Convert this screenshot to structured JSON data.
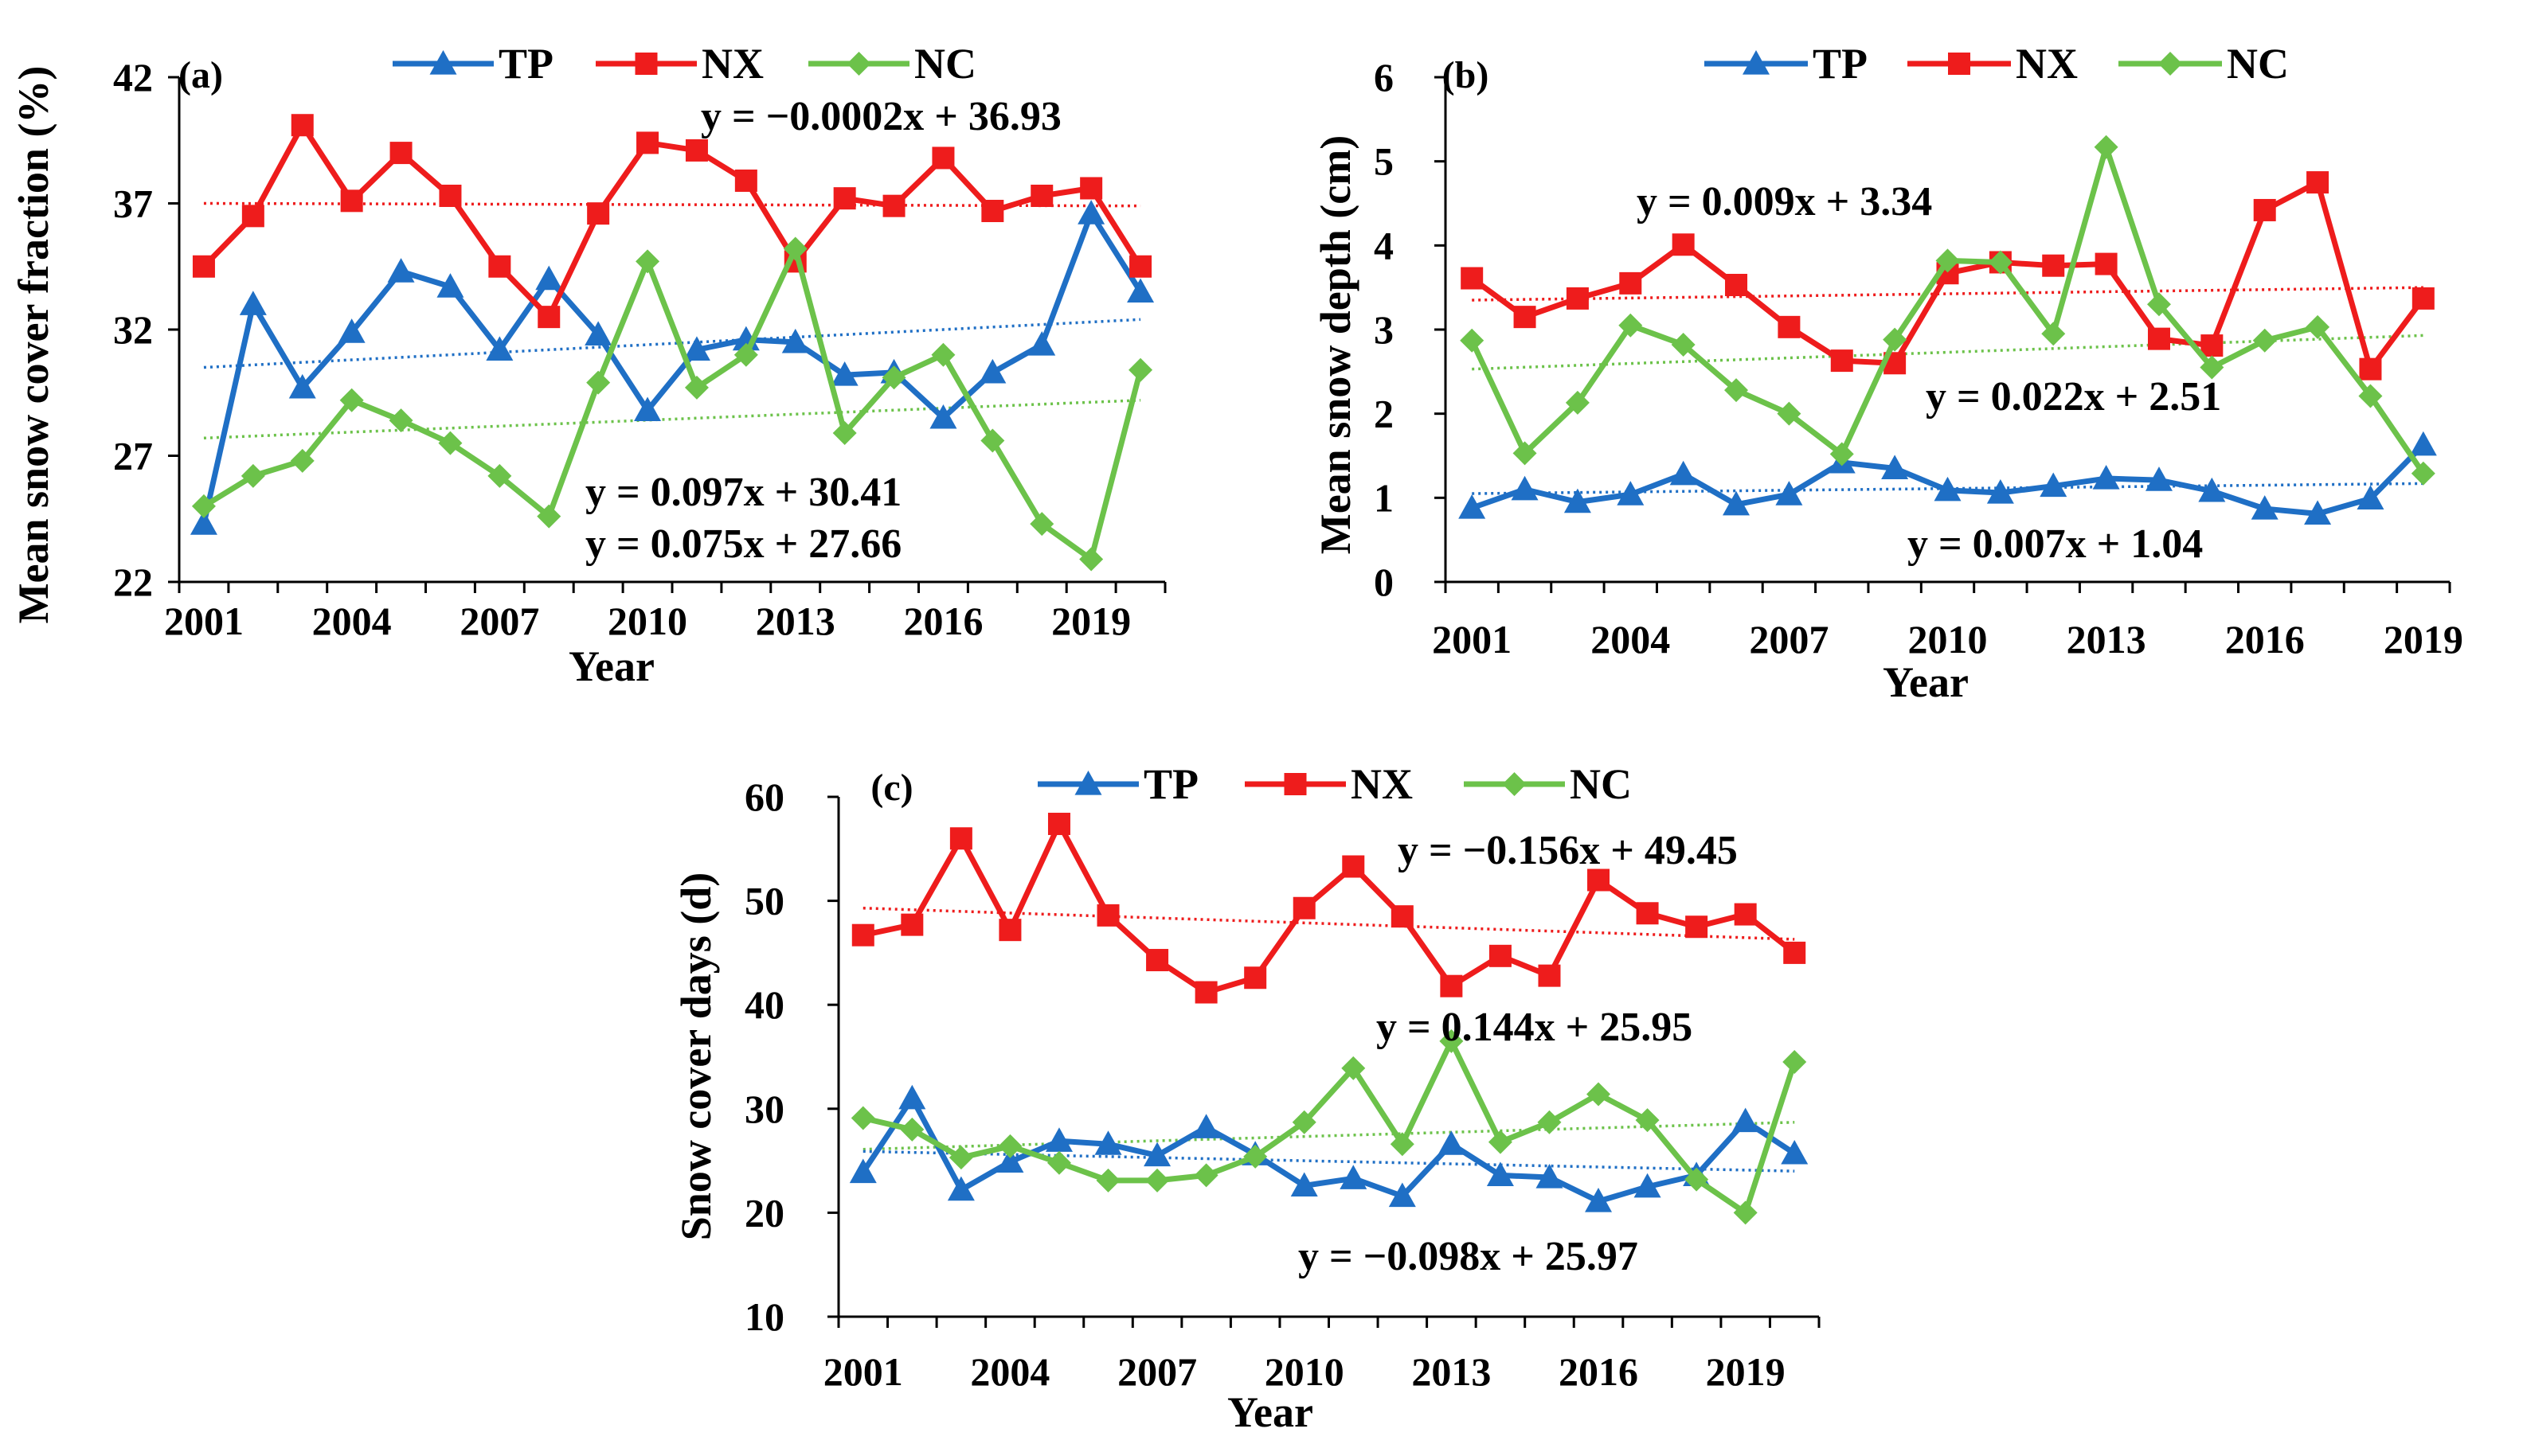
{
  "colors": {
    "TP": "#1f6fc5",
    "NX": "#ee1c1c",
    "NC": "#6cc24a"
  },
  "legend": [
    "TP",
    "NX",
    "NC"
  ],
  "chart_data": [
    {
      "type": "line",
      "panel": "(a)",
      "xlabel": "Year",
      "ylabel": "Mean snow cover fraction (%)",
      "ylim": [
        22,
        42
      ],
      "yticks": [
        22,
        27,
        32,
        37,
        42
      ],
      "xticks": [
        2001,
        2004,
        2007,
        2010,
        2013,
        2016,
        2019
      ],
      "x": [
        2001,
        2002,
        2003,
        2004,
        2005,
        2006,
        2007,
        2008,
        2009,
        2010,
        2011,
        2012,
        2013,
        2014,
        2015,
        2016,
        2017,
        2018,
        2019,
        2020
      ],
      "series": [
        {
          "name": "TP",
          "marker": "triangle",
          "values": [
            24.3,
            33.0,
            29.7,
            31.9,
            34.3,
            33.7,
            31.2,
            34.0,
            31.8,
            28.8,
            31.2,
            31.6,
            31.5,
            30.2,
            30.3,
            28.5,
            30.3,
            31.4,
            36.6,
            33.5
          ]
        },
        {
          "name": "NX",
          "marker": "square",
          "values": [
            34.5,
            36.5,
            40.1,
            37.1,
            39.0,
            37.3,
            34.5,
            32.5,
            36.6,
            39.4,
            39.1,
            37.9,
            34.7,
            37.2,
            36.9,
            38.8,
            36.7,
            37.3,
            37.6,
            34.5
          ]
        },
        {
          "name": "NC",
          "marker": "diamond",
          "values": [
            25.0,
            26.2,
            26.8,
            29.2,
            28.4,
            27.5,
            26.2,
            24.6,
            29.9,
            34.7,
            29.7,
            31.0,
            35.2,
            27.9,
            30.1,
            31.0,
            27.6,
            24.3,
            22.9,
            30.4
          ]
        }
      ],
      "trendlines": [
        {
          "series": "NX",
          "slope": -0.0002,
          "intercept": 36.93,
          "y_start": 37.0,
          "y_end": 36.9
        },
        {
          "series": "TP",
          "slope": 0.097,
          "intercept": 30.41,
          "y_start": 30.5,
          "y_end": 32.4
        },
        {
          "series": "NC",
          "slope": 0.075,
          "intercept": 27.66,
          "y_start": 27.7,
          "y_end": 29.2
        }
      ],
      "equations": [
        "y = −0.0002x + 36.93",
        "y = 0.097x + 30.41",
        "y = 0.075x + 27.66"
      ]
    },
    {
      "type": "line",
      "panel": "(b)",
      "xlabel": "Year",
      "ylabel": "Mean snow depth (cm)",
      "ylim": [
        0,
        6
      ],
      "yticks": [
        0,
        1,
        2,
        3,
        4,
        5,
        6
      ],
      "xticks": [
        2001,
        2004,
        2007,
        2010,
        2013,
        2016,
        2019
      ],
      "x": [
        2001,
        2002,
        2003,
        2004,
        2005,
        2006,
        2007,
        2008,
        2009,
        2010,
        2011,
        2012,
        2013,
        2014,
        2015,
        2016,
        2017,
        2018,
        2019
      ],
      "series": [
        {
          "name": "TP",
          "marker": "triangle",
          "values": [
            0.88,
            1.1,
            0.95,
            1.04,
            1.28,
            0.92,
            1.04,
            1.42,
            1.35,
            1.09,
            1.06,
            1.14,
            1.23,
            1.21,
            1.08,
            0.87,
            0.81,
            0.99,
            1.63
          ]
        },
        {
          "name": "NX",
          "marker": "square",
          "values": [
            3.61,
            3.15,
            3.37,
            3.55,
            4.01,
            3.53,
            3.03,
            2.63,
            2.6,
            3.67,
            3.8,
            3.76,
            3.78,
            2.89,
            2.81,
            4.42,
            4.75,
            2.53,
            3.37
          ]
        },
        {
          "name": "NC",
          "marker": "diamond",
          "values": [
            2.87,
            1.53,
            2.13,
            3.05,
            2.82,
            2.28,
            2.0,
            1.52,
            2.88,
            3.82,
            3.8,
            2.95,
            5.17,
            3.3,
            2.55,
            2.87,
            3.03,
            2.21,
            1.29
          ]
        }
      ],
      "trendlines": [
        {
          "series": "NX",
          "slope": 0.009,
          "intercept": 3.34,
          "y_start": 3.35,
          "y_end": 3.5
        },
        {
          "series": "NC",
          "slope": 0.022,
          "intercept": 2.51,
          "y_start": 2.53,
          "y_end": 2.93
        },
        {
          "series": "TP",
          "slope": 0.007,
          "intercept": 1.04,
          "y_start": 1.05,
          "y_end": 1.17
        }
      ],
      "equations": [
        "y = 0.009x + 3.34",
        "y = 0.022x + 2.51",
        "y = 0.007x + 1.04"
      ]
    },
    {
      "type": "line",
      "panel": "(c)",
      "xlabel": "Year",
      "ylabel": "Snow cover days (d)",
      "ylim": [
        10,
        60
      ],
      "yticks": [
        10,
        20,
        30,
        40,
        50,
        60
      ],
      "xticks": [
        2001,
        2004,
        2007,
        2010,
        2013,
        2016,
        2019
      ],
      "x": [
        2001,
        2002,
        2003,
        2004,
        2005,
        2006,
        2007,
        2008,
        2009,
        2010,
        2011,
        2012,
        2013,
        2014,
        2015,
        2016,
        2017,
        2018,
        2019,
        2020
      ],
      "series": [
        {
          "name": "TP",
          "marker": "triangle",
          "values": [
            23.9,
            31.0,
            22.2,
            24.9,
            26.9,
            26.6,
            25.5,
            28.2,
            25.6,
            22.6,
            23.3,
            21.6,
            26.6,
            23.6,
            23.4,
            21.1,
            22.5,
            23.6,
            28.8,
            25.7
          ]
        },
        {
          "name": "NX",
          "marker": "square",
          "values": [
            46.7,
            47.7,
            56.0,
            47.2,
            57.4,
            48.6,
            44.3,
            41.2,
            42.6,
            49.3,
            53.3,
            48.5,
            41.8,
            44.7,
            42.8,
            52.0,
            48.8,
            47.5,
            48.7,
            45.0
          ]
        },
        {
          "name": "NC",
          "marker": "diamond",
          "values": [
            29.1,
            28.0,
            25.3,
            26.4,
            24.8,
            23.1,
            23.1,
            23.6,
            25.4,
            28.7,
            33.9,
            26.6,
            36.5,
            26.8,
            28.7,
            31.4,
            28.9,
            23.2,
            20.0,
            34.5
          ]
        }
      ],
      "trendlines": [
        {
          "series": "NX",
          "slope": -0.156,
          "intercept": 49.45,
          "y_start": 49.3,
          "y_end": 46.3
        },
        {
          "series": "NC",
          "slope": 0.144,
          "intercept": 25.95,
          "y_start": 26.1,
          "y_end": 28.7
        },
        {
          "series": "TP",
          "slope": -0.098,
          "intercept": 25.97,
          "y_start": 25.9,
          "y_end": 24.0
        }
      ],
      "equations": [
        "y = −0.156x + 49.45",
        "y = 0.144x + 25.95",
        "y = −0.098x + 25.97"
      ]
    }
  ]
}
